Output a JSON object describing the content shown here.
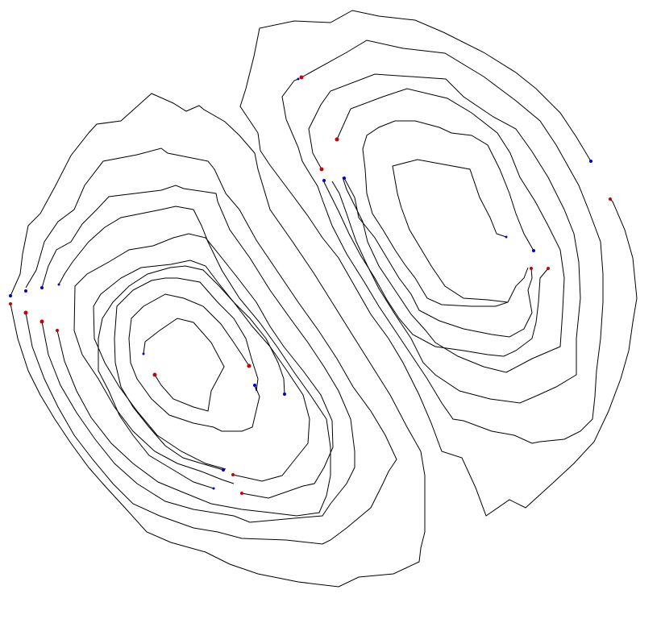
{
  "colors": {
    "background": "#ffffff",
    "line": "#000000",
    "red_marker": "#cc0000",
    "blue_marker": "#0000cc"
  },
  "chart_data": {
    "type": "contour-path-diagram",
    "description_visible_text": "",
    "paths_count": 14,
    "marker_colors": [
      "red",
      "blue"
    ]
  }
}
